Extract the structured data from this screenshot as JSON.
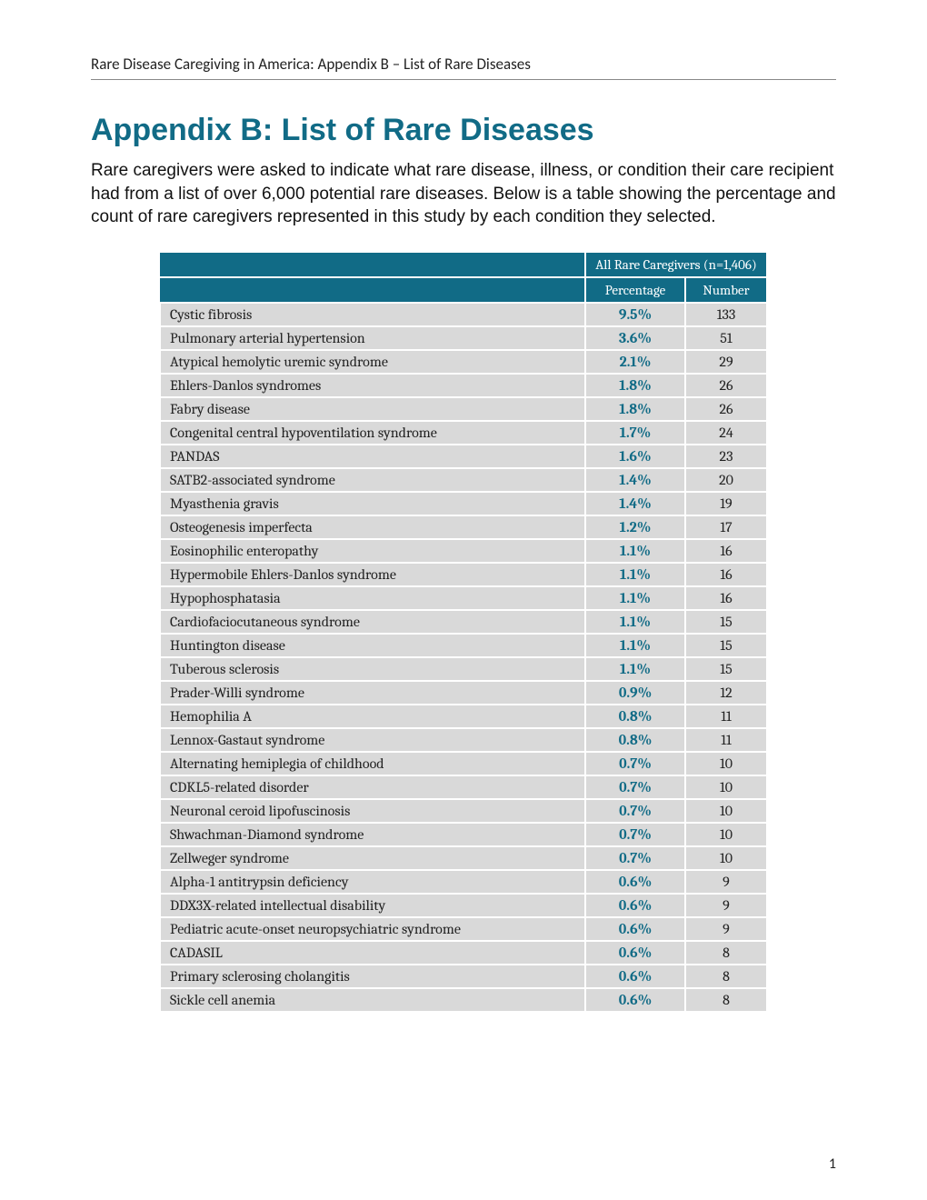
{
  "header": {
    "running": "Rare Disease Caregiving in America: Appendix B – List of Rare Diseases"
  },
  "title": "Appendix B: List of Rare Diseases",
  "intro": "Rare caregivers were asked to indicate what rare disease, illness, or condition their care recipient had from a list of over 6,000 potential rare diseases. Below is a table showing the percentage and count of rare caregivers represented in this study by each condition they selected.",
  "table": {
    "header_group": "All Rare Caregivers (n=1,406)",
    "col_pct": "Percentage",
    "col_num": "Number",
    "rows": [
      {
        "disease": "Cystic fibrosis",
        "pct": "9.5%",
        "num": "133"
      },
      {
        "disease": "Pulmonary arterial hypertension",
        "pct": "3.6%",
        "num": "51"
      },
      {
        "disease": "Atypical hemolytic uremic syndrome",
        "pct": "2.1%",
        "num": "29"
      },
      {
        "disease": "Ehlers-Danlos syndromes",
        "pct": "1.8%",
        "num": "26"
      },
      {
        "disease": "Fabry disease",
        "pct": "1.8%",
        "num": "26"
      },
      {
        "disease": "Congenital central hypoventilation syndrome",
        "pct": "1.7%",
        "num": "24"
      },
      {
        "disease": "PANDAS",
        "pct": "1.6%",
        "num": "23"
      },
      {
        "disease": "SATB2-associated syndrome",
        "pct": "1.4%",
        "num": "20"
      },
      {
        "disease": "Myasthenia gravis",
        "pct": "1.4%",
        "num": "19"
      },
      {
        "disease": "Osteogenesis imperfecta",
        "pct": "1.2%",
        "num": "17"
      },
      {
        "disease": "Eosinophilic enteropathy",
        "pct": "1.1%",
        "num": "16"
      },
      {
        "disease": "Hypermobile Ehlers-Danlos syndrome",
        "pct": "1.1%",
        "num": "16"
      },
      {
        "disease": "Hypophosphatasia",
        "pct": "1.1%",
        "num": "16"
      },
      {
        "disease": "Cardiofaciocutaneous syndrome",
        "pct": "1.1%",
        "num": "15"
      },
      {
        "disease": "Huntington disease",
        "pct": "1.1%",
        "num": "15"
      },
      {
        "disease": "Tuberous sclerosis",
        "pct": "1.1%",
        "num": "15"
      },
      {
        "disease": "Prader-Willi syndrome",
        "pct": "0.9%",
        "num": "12"
      },
      {
        "disease": "Hemophilia A",
        "pct": "0.8%",
        "num": "11"
      },
      {
        "disease": "Lennox-Gastaut syndrome",
        "pct": "0.8%",
        "num": "11"
      },
      {
        "disease": "Alternating hemiplegia of childhood",
        "pct": "0.7%",
        "num": "10"
      },
      {
        "disease": "CDKL5-related disorder",
        "pct": "0.7%",
        "num": "10"
      },
      {
        "disease": "Neuronal ceroid lipofuscinosis",
        "pct": "0.7%",
        "num": "10"
      },
      {
        "disease": "Shwachman-Diamond syndrome",
        "pct": "0.7%",
        "num": "10"
      },
      {
        "disease": "Zellweger syndrome",
        "pct": "0.7%",
        "num": "10"
      },
      {
        "disease": "Alpha-1 antitrypsin deficiency",
        "pct": "0.6%",
        "num": "9"
      },
      {
        "disease": "DDX3X-related intellectual disability",
        "pct": "0.6%",
        "num": "9"
      },
      {
        "disease": "Pediatric acute-onset neuropsychiatric syndrome",
        "pct": "0.6%",
        "num": "9"
      },
      {
        "disease": "CADASIL",
        "pct": "0.6%",
        "num": "8"
      },
      {
        "disease": "Primary sclerosing cholangitis",
        "pct": "0.6%",
        "num": "8"
      },
      {
        "disease": "Sickle cell anemia",
        "pct": "0.6%",
        "num": "8"
      }
    ]
  },
  "page_number": "1",
  "colors": {
    "accent": "#116b86",
    "row_bg": "#d9d9d9",
    "text": "#222222",
    "page_bg": "#ffffff"
  },
  "typography": {
    "title_fontsize": 34,
    "body_fontsize": 19,
    "table_fontsize": 16,
    "header_fontsize": 17
  }
}
